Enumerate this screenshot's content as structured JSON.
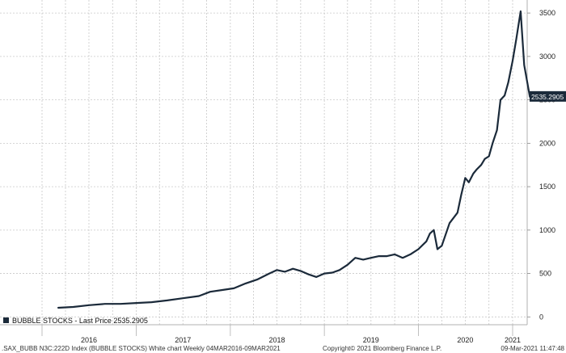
{
  "chart_data": {
    "type": "line",
    "title": "",
    "xlabel": "",
    "ylabel": "",
    "ylim": [
      -90,
      3650
    ],
    "yticks": [
      0,
      500,
      1000,
      1500,
      2000,
      2500,
      3000,
      3500
    ],
    "x_tick_labels": [
      "2016",
      "2017",
      "2018",
      "2019",
      "2020",
      "2021"
    ],
    "grid": true,
    "legend": "bottom-left",
    "last_price_label": "2535.2905",
    "series": [
      {
        "name": "BUBBLE STOCKS - Last Price 2535.2905",
        "color": "#1b2a3a",
        "x": [
          "2016-03-04",
          "2016-05-01",
          "2016-07-01",
          "2016-09-01",
          "2016-11-01",
          "2017-01-01",
          "2017-03-01",
          "2017-05-01",
          "2017-07-01",
          "2017-09-01",
          "2017-10-15",
          "2017-12-01",
          "2018-01-15",
          "2018-03-01",
          "2018-04-15",
          "2018-06-01",
          "2018-07-01",
          "2018-08-01",
          "2018-09-01",
          "2018-10-01",
          "2018-11-01",
          "2018-12-01",
          "2019-01-01",
          "2019-02-01",
          "2019-03-01",
          "2019-04-01",
          "2019-05-01",
          "2019-06-01",
          "2019-07-01",
          "2019-08-01",
          "2019-09-01",
          "2019-10-01",
          "2019-11-01",
          "2019-12-01",
          "2020-01-01",
          "2020-02-01",
          "2020-02-15",
          "2020-03-01",
          "2020-03-15",
          "2020-04-01",
          "2020-05-01",
          "2020-06-01",
          "2020-06-15",
          "2020-07-01",
          "2020-07-15",
          "2020-08-01",
          "2020-08-15",
          "2020-09-01",
          "2020-09-15",
          "2020-10-01",
          "2020-10-15",
          "2020-11-01",
          "2020-11-15",
          "2020-12-01",
          "2020-12-15",
          "2021-01-01",
          "2021-01-15",
          "2021-02-01",
          "2021-02-15",
          "2021-03-09"
        ],
        "values": [
          105,
          115,
          135,
          150,
          150,
          160,
          170,
          190,
          215,
          240,
          290,
          310,
          330,
          385,
          430,
          500,
          540,
          520,
          555,
          530,
          490,
          460,
          500,
          510,
          540,
          600,
          680,
          660,
          680,
          700,
          700,
          720,
          680,
          720,
          780,
          870,
          960,
          1000,
          780,
          820,
          1080,
          1200,
          1400,
          1600,
          1550,
          1650,
          1700,
          1750,
          1820,
          1850,
          2000,
          2150,
          2500,
          2550,
          2700,
          2950,
          3200,
          3520,
          2900,
          2535
        ]
      }
    ]
  },
  "legend": {
    "label": "BUBBLE STOCKS - Last Price 2535.2905"
  },
  "footer": {
    "left": ".SAX_BUBB N3C:222D Index (BUBBLE STOCKS) White chart  Weekly 04MAR2016-09MAR2021",
    "center": "Copyright© 2021 Bloomberg Finance L.P.",
    "right": "09-Mar-2021 11:47:48"
  },
  "colors": {
    "line": "#1b2a3a",
    "grid": "#c8c8c8",
    "axis": "#b0b0b0",
    "last_price_box": "#1b2a3a"
  }
}
